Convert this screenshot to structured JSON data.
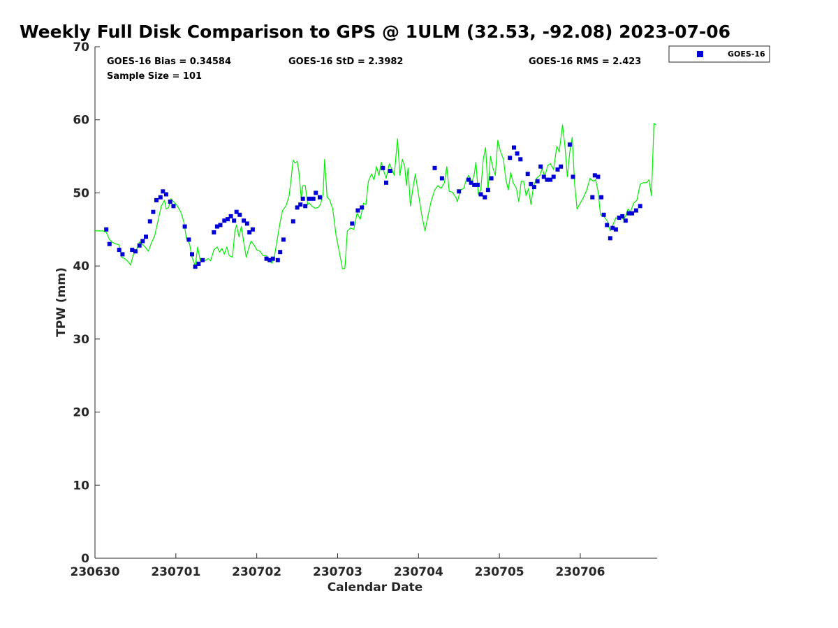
{
  "chart_data": {
    "type": "line+scatter",
    "title": "Weekly Full Disk Comparison to GPS @ 1ULM (32.53, -92.08) 2023-07-06",
    "xlabel": "Calendar Date",
    "ylabel": "TPW (mm)",
    "xlim": [
      0,
      6.95
    ],
    "ylim": [
      0,
      70
    ],
    "x_ticks": [
      {
        "value": 0,
        "label": "230630"
      },
      {
        "value": 1,
        "label": "230701"
      },
      {
        "value": 2,
        "label": "230702"
      },
      {
        "value": 3,
        "label": "230703"
      },
      {
        "value": 4,
        "label": "230704"
      },
      {
        "value": 5,
        "label": "230705"
      },
      {
        "value": 6,
        "label": "230706"
      }
    ],
    "y_ticks": [
      0,
      10,
      20,
      30,
      40,
      50,
      60,
      70
    ],
    "stats": {
      "bias": "GOES-16 Bias = 0.34584",
      "std": "GOES-16 StD = 2.3982",
      "rms": "GOES-16 RMS = 2.423",
      "sample_size": "Sample Size = 101"
    },
    "legend": {
      "label": "GOES-16",
      "position": "top-right-outside"
    },
    "series": [
      {
        "name": "GPS",
        "type": "line",
        "color": "#00ee00",
        "points": [
          [
            0.0,
            44.8
          ],
          [
            0.1,
            44.8
          ],
          [
            0.14,
            44.6
          ],
          [
            0.18,
            43.6
          ],
          [
            0.22,
            43.2
          ],
          [
            0.26,
            43.0
          ],
          [
            0.3,
            42.9
          ],
          [
            0.33,
            41.2
          ],
          [
            0.37,
            41.0
          ],
          [
            0.41,
            40.6
          ],
          [
            0.44,
            40.1
          ],
          [
            0.47,
            41.4
          ],
          [
            0.52,
            42.4
          ],
          [
            0.55,
            43.3
          ],
          [
            0.58,
            43.0
          ],
          [
            0.62,
            42.6
          ],
          [
            0.66,
            42.0
          ],
          [
            0.7,
            43.2
          ],
          [
            0.74,
            44.2
          ],
          [
            0.78,
            46.2
          ],
          [
            0.82,
            48.2
          ],
          [
            0.86,
            49.0
          ],
          [
            0.88,
            47.8
          ],
          [
            0.91,
            48.0
          ],
          [
            0.94,
            49.2
          ],
          [
            0.98,
            48.7
          ],
          [
            1.02,
            48.2
          ],
          [
            1.06,
            47.4
          ],
          [
            1.1,
            46.0
          ],
          [
            1.13,
            43.8
          ],
          [
            1.17,
            43.0
          ],
          [
            1.2,
            41.2
          ],
          [
            1.24,
            40.0
          ],
          [
            1.27,
            42.6
          ],
          [
            1.3,
            40.8
          ],
          [
            1.33,
            40.6
          ],
          [
            1.37,
            40.8
          ],
          [
            1.4,
            41.0
          ],
          [
            1.43,
            40.7
          ],
          [
            1.47,
            42.2
          ],
          [
            1.51,
            42.6
          ],
          [
            1.54,
            41.9
          ],
          [
            1.57,
            42.4
          ],
          [
            1.6,
            41.6
          ],
          [
            1.63,
            42.6
          ],
          [
            1.66,
            41.4
          ],
          [
            1.7,
            41.2
          ],
          [
            1.73,
            44.8
          ],
          [
            1.75,
            45.6
          ],
          [
            1.78,
            44.0
          ],
          [
            1.81,
            45.4
          ],
          [
            1.84,
            43.2
          ],
          [
            1.87,
            41.2
          ],
          [
            1.9,
            42.4
          ],
          [
            1.93,
            43.4
          ],
          [
            1.97,
            42.8
          ],
          [
            2.0,
            42.2
          ],
          [
            2.04,
            42.0
          ],
          [
            2.08,
            41.4
          ],
          [
            2.12,
            41.4
          ],
          [
            2.16,
            40.6
          ],
          [
            2.19,
            40.4
          ],
          [
            2.22,
            41.4
          ],
          [
            2.25,
            43.4
          ],
          [
            2.29,
            46.0
          ],
          [
            2.32,
            47.6
          ],
          [
            2.36,
            48.2
          ],
          [
            2.4,
            49.6
          ],
          [
            2.42,
            51.4
          ],
          [
            2.45,
            54.5
          ],
          [
            2.47,
            54.1
          ],
          [
            2.5,
            54.3
          ],
          [
            2.52,
            53.0
          ],
          [
            2.55,
            49.2
          ],
          [
            2.57,
            51.0
          ],
          [
            2.6,
            51.0
          ],
          [
            2.63,
            48.4
          ],
          [
            2.65,
            48.6
          ],
          [
            2.68,
            48.2
          ],
          [
            2.72,
            47.9
          ],
          [
            2.76,
            48.0
          ],
          [
            2.79,
            48.5
          ],
          [
            2.82,
            49.8
          ],
          [
            2.84,
            54.6
          ],
          [
            2.87,
            49.4
          ],
          [
            2.9,
            49.1
          ],
          [
            2.94,
            47.8
          ],
          [
            2.98,
            44.2
          ],
          [
            3.02,
            42.0
          ],
          [
            3.06,
            39.6
          ],
          [
            3.09,
            39.7
          ],
          [
            3.12,
            44.8
          ],
          [
            3.16,
            45.2
          ],
          [
            3.2,
            45.0
          ],
          [
            3.24,
            47.2
          ],
          [
            3.28,
            46.4
          ],
          [
            3.32,
            48.6
          ],
          [
            3.35,
            48.4
          ],
          [
            3.38,
            51.6
          ],
          [
            3.42,
            52.6
          ],
          [
            3.45,
            51.8
          ],
          [
            3.48,
            53.6
          ],
          [
            3.51,
            52.4
          ],
          [
            3.54,
            54.2
          ],
          [
            3.57,
            53.0
          ],
          [
            3.6,
            52.0
          ],
          [
            3.64,
            54.0
          ],
          [
            3.67,
            53.2
          ],
          [
            3.7,
            52.4
          ],
          [
            3.74,
            57.4
          ],
          [
            3.77,
            52.4
          ],
          [
            3.8,
            54.6
          ],
          [
            3.83,
            53.6
          ],
          [
            3.85,
            51.0
          ],
          [
            3.87,
            53.4
          ],
          [
            3.9,
            48.2
          ],
          [
            3.93,
            50.6
          ],
          [
            3.96,
            52.6
          ],
          [
            4.0,
            49.8
          ],
          [
            4.04,
            47.0
          ],
          [
            4.08,
            44.8
          ],
          [
            4.12,
            47.0
          ],
          [
            4.16,
            49.0
          ],
          [
            4.2,
            50.4
          ],
          [
            4.24,
            51.0
          ],
          [
            4.28,
            50.6
          ],
          [
            4.32,
            51.4
          ],
          [
            4.35,
            53.6
          ],
          [
            4.38,
            50.2
          ],
          [
            4.42,
            50.1
          ],
          [
            4.46,
            49.4
          ],
          [
            4.48,
            48.8
          ],
          [
            4.52,
            50.4
          ],
          [
            4.56,
            50.6
          ],
          [
            4.59,
            51.8
          ],
          [
            4.62,
            52.4
          ],
          [
            4.66,
            51.4
          ],
          [
            4.69,
            52.6
          ],
          [
            4.71,
            54.2
          ],
          [
            4.74,
            49.8
          ],
          [
            4.77,
            50.4
          ],
          [
            4.8,
            54.6
          ],
          [
            4.83,
            56.2
          ],
          [
            4.86,
            50.4
          ],
          [
            4.89,
            55.0
          ],
          [
            4.92,
            53.4
          ],
          [
            4.95,
            52.4
          ],
          [
            4.98,
            57.2
          ],
          [
            5.01,
            55.8
          ],
          [
            5.05,
            54.6
          ],
          [
            5.08,
            51.8
          ],
          [
            5.11,
            50.4
          ],
          [
            5.14,
            52.8
          ],
          [
            5.17,
            51.4
          ],
          [
            5.21,
            50.6
          ],
          [
            5.24,
            48.8
          ],
          [
            5.27,
            51.6
          ],
          [
            5.3,
            51.6
          ],
          [
            5.33,
            49.6
          ],
          [
            5.36,
            50.6
          ],
          [
            5.39,
            48.4
          ],
          [
            5.42,
            50.8
          ],
          [
            5.46,
            52.0
          ],
          [
            5.5,
            52.4
          ],
          [
            5.53,
            53.4
          ],
          [
            5.56,
            52.2
          ],
          [
            5.6,
            53.8
          ],
          [
            5.63,
            54.0
          ],
          [
            5.67,
            53.2
          ],
          [
            5.71,
            56.4
          ],
          [
            5.74,
            55.6
          ],
          [
            5.78,
            59.3
          ],
          [
            5.81,
            56.4
          ],
          [
            5.84,
            52.2
          ],
          [
            5.87,
            55.6
          ],
          [
            5.9,
            57.6
          ],
          [
            5.93,
            51.2
          ],
          [
            5.96,
            47.8
          ],
          [
            6.0,
            48.6
          ],
          [
            6.04,
            49.4
          ],
          [
            6.08,
            50.4
          ],
          [
            6.12,
            52.0
          ],
          [
            6.16,
            51.6
          ],
          [
            6.19,
            51.8
          ],
          [
            6.22,
            50.2
          ],
          [
            6.25,
            47.0
          ],
          [
            6.29,
            46.8
          ],
          [
            6.33,
            46.2
          ],
          [
            6.37,
            44.8
          ],
          [
            6.41,
            45.8
          ],
          [
            6.44,
            46.6
          ],
          [
            6.47,
            46.4
          ],
          [
            6.5,
            46.8
          ],
          [
            6.53,
            46.4
          ],
          [
            6.56,
            46.8
          ],
          [
            6.59,
            47.8
          ],
          [
            6.62,
            47.4
          ],
          [
            6.66,
            48.6
          ],
          [
            6.7,
            49.0
          ],
          [
            6.74,
            51.2
          ],
          [
            6.78,
            51.4
          ],
          [
            6.82,
            51.4
          ],
          [
            6.85,
            51.8
          ],
          [
            6.88,
            49.6
          ],
          [
            6.91,
            59.5
          ],
          [
            6.94,
            59.3
          ]
        ]
      },
      {
        "name": "GOES-16",
        "type": "scatter",
        "color": "#0000d6",
        "points": [
          [
            0.14,
            45.0
          ],
          [
            0.18,
            43.0
          ],
          [
            0.3,
            42.2
          ],
          [
            0.34,
            41.6
          ],
          [
            0.46,
            42.2
          ],
          [
            0.5,
            42.0
          ],
          [
            0.55,
            42.8
          ],
          [
            0.59,
            43.4
          ],
          [
            0.63,
            44.0
          ],
          [
            0.68,
            46.1
          ],
          [
            0.72,
            47.4
          ],
          [
            0.76,
            49.0
          ],
          [
            0.81,
            49.4
          ],
          [
            0.84,
            50.2
          ],
          [
            0.88,
            49.8
          ],
          [
            0.93,
            48.8
          ],
          [
            0.97,
            48.2
          ],
          [
            1.11,
            45.4
          ],
          [
            1.16,
            43.6
          ],
          [
            1.2,
            41.6
          ],
          [
            1.24,
            39.9
          ],
          [
            1.28,
            40.3
          ],
          [
            1.33,
            40.8
          ],
          [
            1.47,
            44.6
          ],
          [
            1.51,
            45.4
          ],
          [
            1.55,
            45.6
          ],
          [
            1.6,
            46.2
          ],
          [
            1.64,
            46.4
          ],
          [
            1.68,
            46.8
          ],
          [
            1.72,
            46.2
          ],
          [
            1.75,
            47.4
          ],
          [
            1.79,
            47.0
          ],
          [
            1.84,
            46.2
          ],
          [
            1.88,
            45.8
          ],
          [
            1.91,
            44.6
          ],
          [
            1.95,
            45.0
          ],
          [
            2.12,
            41.0
          ],
          [
            2.16,
            40.8
          ],
          [
            2.2,
            41.0
          ],
          [
            2.26,
            40.8
          ],
          [
            2.29,
            41.9
          ],
          [
            2.33,
            43.6
          ],
          [
            2.45,
            46.1
          ],
          [
            2.5,
            48.0
          ],
          [
            2.54,
            48.4
          ],
          [
            2.57,
            49.2
          ],
          [
            2.6,
            48.2
          ],
          [
            2.65,
            49.2
          ],
          [
            2.7,
            49.2
          ],
          [
            2.73,
            50.0
          ],
          [
            2.78,
            49.4
          ],
          [
            3.18,
            45.8
          ],
          [
            3.25,
            47.6
          ],
          [
            3.3,
            48.0
          ],
          [
            3.56,
            53.4
          ],
          [
            3.6,
            51.4
          ],
          [
            3.65,
            53.0
          ],
          [
            4.2,
            53.4
          ],
          [
            4.29,
            52.0
          ],
          [
            4.5,
            50.2
          ],
          [
            4.62,
            51.8
          ],
          [
            4.65,
            51.4
          ],
          [
            4.69,
            51.1
          ],
          [
            4.73,
            51.1
          ],
          [
            4.77,
            49.8
          ],
          [
            4.82,
            49.4
          ],
          [
            4.86,
            50.4
          ],
          [
            4.9,
            52.0
          ],
          [
            5.13,
            54.8
          ],
          [
            5.18,
            56.2
          ],
          [
            5.22,
            55.4
          ],
          [
            5.26,
            54.6
          ],
          [
            5.35,
            52.6
          ],
          [
            5.39,
            51.2
          ],
          [
            5.43,
            50.8
          ],
          [
            5.47,
            51.6
          ],
          [
            5.51,
            53.6
          ],
          [
            5.55,
            52.2
          ],
          [
            5.59,
            51.8
          ],
          [
            5.63,
            51.8
          ],
          [
            5.67,
            52.2
          ],
          [
            5.72,
            53.2
          ],
          [
            5.76,
            53.6
          ],
          [
            5.87,
            56.6
          ],
          [
            5.91,
            52.2
          ],
          [
            6.15,
            49.4
          ],
          [
            6.18,
            52.4
          ],
          [
            6.22,
            52.2
          ],
          [
            6.26,
            49.4
          ],
          [
            6.29,
            47.0
          ],
          [
            6.33,
            45.6
          ],
          [
            6.37,
            43.8
          ],
          [
            6.4,
            45.2
          ],
          [
            6.44,
            45.0
          ],
          [
            6.48,
            46.6
          ],
          [
            6.52,
            46.8
          ],
          [
            6.56,
            46.2
          ],
          [
            6.6,
            47.2
          ],
          [
            6.64,
            47.2
          ],
          [
            6.69,
            47.6
          ],
          [
            6.74,
            48.2
          ]
        ]
      }
    ]
  }
}
